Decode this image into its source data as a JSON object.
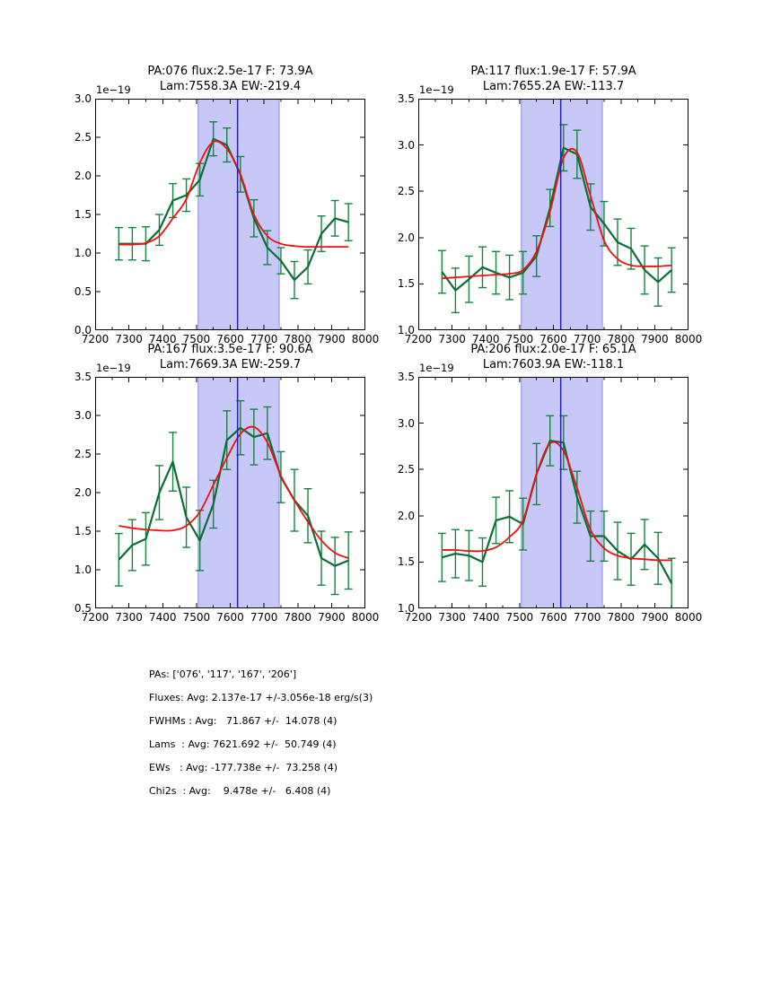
{
  "colors": {
    "background": "#ffffff",
    "data_line": "#0a6e35",
    "error_bar": "#15843f",
    "fit_line": "#f01010",
    "center_line": "#2323aa",
    "band_fill": "#c8c8f8",
    "band_edge": "#9090dd",
    "axis": "#000000"
  },
  "chart_data": [
    {
      "type": "line",
      "title_line1": "PA:076 flux:2.5e-17 F: 73.9A",
      "title_line2": "Lam:7558.3A EW:-219.4",
      "offset_label": "1e−19",
      "xlim": [
        7200,
        8000
      ],
      "ylim": [
        0.0,
        3.0
      ],
      "xticks": [
        7200,
        7300,
        7400,
        7500,
        7600,
        7700,
        7800,
        7900,
        8000
      ],
      "yticks": [
        0.0,
        0.5,
        1.0,
        1.5,
        2.0,
        2.5,
        3.0
      ],
      "band": [
        7505,
        7745
      ],
      "vline": 7621.7,
      "grid": false,
      "legend": "none",
      "x": [
        7270,
        7310,
        7350,
        7390,
        7430,
        7470,
        7510,
        7550,
        7590,
        7630,
        7670,
        7710,
        7750,
        7790,
        7830,
        7870,
        7910,
        7950
      ],
      "series": [
        {
          "name": "spectrum-data",
          "values": [
            1.12,
            1.12,
            1.12,
            1.3,
            1.68,
            1.75,
            1.95,
            2.48,
            2.4,
            2.02,
            1.45,
            1.07,
            0.9,
            0.65,
            0.82,
            1.25,
            1.45,
            1.4
          ]
        },
        {
          "name": "gaussian-fit",
          "values": [
            1.11,
            1.11,
            1.13,
            1.22,
            1.45,
            1.7,
            2.17,
            2.44,
            2.35,
            2.02,
            1.5,
            1.22,
            1.12,
            1.09,
            1.08,
            1.08,
            1.08,
            1.08
          ]
        }
      ],
      "errors": [
        0.21,
        0.21,
        0.22,
        0.2,
        0.22,
        0.21,
        0.21,
        0.22,
        0.22,
        0.23,
        0.24,
        0.22,
        0.17,
        0.24,
        0.22,
        0.23,
        0.23,
        0.24
      ]
    },
    {
      "type": "line",
      "title_line1": "PA:117 flux:1.9e-17 F: 57.9A",
      "title_line2": "Lam:7655.2A EW:-113.7",
      "offset_label": "1e−19",
      "xlim": [
        7200,
        8000
      ],
      "ylim": [
        1.0,
        3.5
      ],
      "xticks": [
        7200,
        7300,
        7400,
        7500,
        7600,
        7700,
        7800,
        7900,
        8000
      ],
      "yticks": [
        1.0,
        1.5,
        2.0,
        2.5,
        3.0,
        3.5
      ],
      "band": [
        7505,
        7745
      ],
      "vline": 7621.7,
      "grid": false,
      "legend": "none",
      "x": [
        7270,
        7310,
        7350,
        7390,
        7430,
        7470,
        7510,
        7550,
        7590,
        7630,
        7670,
        7710,
        7750,
        7790,
        7830,
        7870,
        7910,
        7950
      ],
      "series": [
        {
          "name": "spectrum-data",
          "values": [
            1.63,
            1.43,
            1.55,
            1.68,
            1.62,
            1.57,
            1.62,
            1.8,
            2.32,
            2.97,
            2.9,
            2.33,
            2.15,
            1.95,
            1.88,
            1.65,
            1.52,
            1.65
          ]
        },
        {
          "name": "gaussian-fit",
          "values": [
            1.56,
            1.57,
            1.58,
            1.59,
            1.6,
            1.61,
            1.65,
            1.85,
            2.28,
            2.86,
            2.92,
            2.45,
            1.97,
            1.77,
            1.7,
            1.69,
            1.69,
            1.7
          ]
        }
      ],
      "errors": [
        0.23,
        0.24,
        0.25,
        0.22,
        0.23,
        0.24,
        0.23,
        0.22,
        0.2,
        0.25,
        0.26,
        0.25,
        0.24,
        0.25,
        0.22,
        0.26,
        0.26,
        0.24
      ]
    },
    {
      "type": "line",
      "title_line1": "PA:167 flux:3.5e-17 F: 90.6A",
      "title_line2": "Lam:7669.3A EW:-259.7",
      "offset_label": "1e−19",
      "xlim": [
        7200,
        8000
      ],
      "ylim": [
        0.5,
        3.5
      ],
      "xticks": [
        7200,
        7300,
        7400,
        7500,
        7600,
        7700,
        7800,
        7900,
        8000
      ],
      "yticks": [
        0.5,
        1.0,
        1.5,
        2.0,
        2.5,
        3.0,
        3.5
      ],
      "band": [
        7505,
        7745
      ],
      "vline": 7621.7,
      "grid": false,
      "legend": "none",
      "x": [
        7270,
        7310,
        7350,
        7390,
        7430,
        7470,
        7510,
        7550,
        7590,
        7630,
        7670,
        7710,
        7750,
        7790,
        7830,
        7870,
        7910,
        7950
      ],
      "series": [
        {
          "name": "spectrum-data",
          "values": [
            1.13,
            1.32,
            1.4,
            2.0,
            2.4,
            1.68,
            1.38,
            1.85,
            2.68,
            2.84,
            2.72,
            2.77,
            2.2,
            1.9,
            1.7,
            1.15,
            1.05,
            1.12
          ]
        },
        {
          "name": "gaussian-fit",
          "values": [
            1.57,
            1.54,
            1.52,
            1.51,
            1.51,
            1.57,
            1.75,
            2.1,
            2.45,
            2.76,
            2.85,
            2.65,
            2.22,
            1.9,
            1.62,
            1.38,
            1.22,
            1.15
          ]
        }
      ],
      "errors": [
        0.34,
        0.33,
        0.34,
        0.35,
        0.38,
        0.39,
        0.39,
        0.31,
        0.38,
        0.35,
        0.36,
        0.34,
        0.33,
        0.4,
        0.35,
        0.35,
        0.37,
        0.37
      ]
    },
    {
      "type": "line",
      "title_line1": "PA:206 flux:2.0e-17 F: 65.1A",
      "title_line2": "Lam:7603.9A EW:-118.1",
      "offset_label": "1e−19",
      "xlim": [
        7200,
        8000
      ],
      "ylim": [
        1.0,
        3.5
      ],
      "xticks": [
        7200,
        7300,
        7400,
        7500,
        7600,
        7700,
        7800,
        7900,
        8000
      ],
      "yticks": [
        1.0,
        1.5,
        2.0,
        2.5,
        3.0,
        3.5
      ],
      "band": [
        7505,
        7745
      ],
      "vline": 7621.7,
      "grid": false,
      "legend": "none",
      "x": [
        7270,
        7310,
        7350,
        7390,
        7430,
        7470,
        7510,
        7550,
        7590,
        7630,
        7670,
        7710,
        7750,
        7790,
        7830,
        7870,
        7910,
        7950
      ],
      "series": [
        {
          "name": "spectrum-data",
          "values": [
            1.55,
            1.59,
            1.57,
            1.5,
            1.95,
            1.99,
            1.91,
            2.45,
            2.81,
            2.79,
            2.2,
            1.78,
            1.78,
            1.62,
            1.53,
            1.69,
            1.54,
            1.27
          ]
        },
        {
          "name": "gaussian-fit",
          "values": [
            1.63,
            1.63,
            1.62,
            1.62,
            1.66,
            1.77,
            1.95,
            2.45,
            2.78,
            2.7,
            2.3,
            1.85,
            1.65,
            1.57,
            1.54,
            1.53,
            1.52,
            1.52
          ]
        }
      ],
      "errors": [
        0.26,
        0.26,
        0.27,
        0.26,
        0.25,
        0.28,
        0.28,
        0.33,
        0.27,
        0.29,
        0.28,
        0.27,
        0.27,
        0.31,
        0.28,
        0.27,
        0.28,
        0.27
      ]
    }
  ],
  "footer": {
    "lines": [
      "PAs: ['076', '117', '167', '206']",
      "Fluxes: Avg: 2.137e-17 +/-3.056e-18 erg/s(3)",
      "FWHMs : Avg:   71.867 +/-  14.078 (4)",
      "Lams  : Avg: 7621.692 +/-  50.749 (4)",
      "EWs   : Avg: -177.738e +/-  73.258 (4)",
      "Chi2s  : Avg:    9.478e +/-   6.408 (4)"
    ]
  }
}
